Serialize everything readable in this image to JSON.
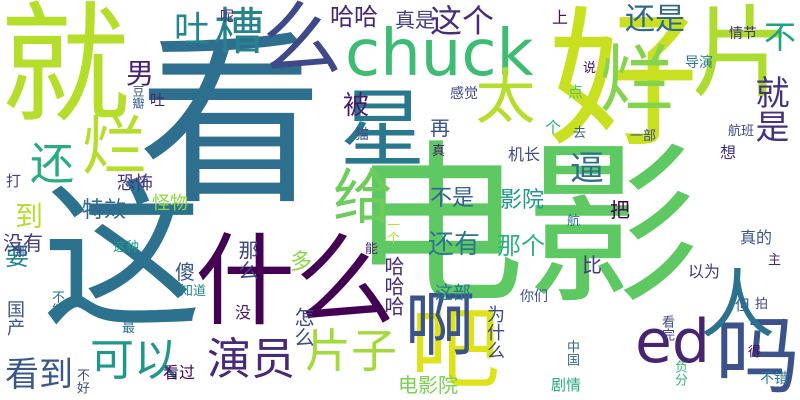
{
  "words": [
    {
      "text": "看",
      "color": "#2e6e8e",
      "vertical": false
    },
    {
      "text": "电影",
      "color": "#5ec962",
      "vertical": false
    },
    {
      "text": "这",
      "color": "#2c728e",
      "vertical": false
    },
    {
      "text": "就",
      "color": "#b5de2b",
      "vertical": false
    },
    {
      "text": "好",
      "color": "#c8e020",
      "vertical": true
    },
    {
      "text": "什么",
      "color": "#440154",
      "vertical": false
    },
    {
      "text": "chuck",
      "color": "#3dbc74",
      "vertical": false
    },
    {
      "text": "片",
      "color": "#addc30",
      "vertical": true
    },
    {
      "text": "吧",
      "color": "#dde318",
      "vertical": false
    },
    {
      "text": "啊",
      "color": "#3b528b",
      "vertical": false
    },
    {
      "text": "星",
      "color": "#2a788e",
      "vertical": false
    },
    {
      "text": "么",
      "color": "#3e4989",
      "vertical": false
    },
    {
      "text": "吗",
      "color": "#3b528b",
      "vertical": false
    },
    {
      "text": "ed",
      "color": "#482374",
      "vertical": false
    },
    {
      "text": "人",
      "color": "#2c728e",
      "vertical": false
    },
    {
      "text": "给",
      "color": "#6ccd5a",
      "vertical": false
    },
    {
      "text": "太",
      "color": "#b5de2b",
      "vertical": true
    },
    {
      "text": "烂",
      "color": "#84d44b",
      "vertical": true
    },
    {
      "text": "烂",
      "color": "#b5de2b",
      "vertical": true
    },
    {
      "text": "还",
      "color": "#27ad81",
      "vertical": false
    },
    {
      "text": "片子",
      "color": "#a2da37",
      "vertical": false
    },
    {
      "text": "演员",
      "color": "#482878",
      "vertical": false
    },
    {
      "text": "可以",
      "color": "#1f988b",
      "vertical": false
    },
    {
      "text": "看到",
      "color": "#38588c",
      "vertical": false
    },
    {
      "text": "槽",
      "color": "#26828e",
      "vertical": true
    },
    {
      "text": "吐",
      "color": "#25858e",
      "vertical": true
    },
    {
      "text": "就是",
      "color": "#46327e",
      "vertical": true
    },
    {
      "text": "不",
      "color": "#1fa088",
      "vertical": true
    },
    {
      "text": "这个",
      "color": "#472c7a",
      "vertical": false
    },
    {
      "text": "哈哈",
      "color": "#482475",
      "vertical": false
    },
    {
      "text": "真是",
      "color": "#433d84",
      "vertical": false
    },
    {
      "text": "还是",
      "color": "#31688e",
      "vertical": false
    },
    {
      "text": "男",
      "color": "#482173",
      "vertical": false
    },
    {
      "text": "被",
      "color": "#481b6d",
      "vertical": false
    },
    {
      "text": "逼",
      "color": "#2e6f8e",
      "vertical": false
    },
    {
      "text": "到",
      "color": "#b8de29",
      "vertical": false
    },
    {
      "text": "要",
      "color": "#24878e",
      "vertical": false
    },
    {
      "text": "没有",
      "color": "#443983",
      "vertical": false
    },
    {
      "text": "多",
      "color": "#8bd646",
      "vertical": false
    },
    {
      "text": "再",
      "color": "#3a548c",
      "vertical": false
    },
    {
      "text": "不是",
      "color": "#34618d",
      "vertical": false
    },
    {
      "text": "影院",
      "color": "#1f978b",
      "vertical": false
    },
    {
      "text": "还有",
      "color": "#2a768e",
      "vertical": false
    },
    {
      "text": "那个",
      "color": "#2db27d",
      "vertical": false
    },
    {
      "text": "把",
      "color": "#440154",
      "vertical": false
    },
    {
      "text": "比",
      "color": "#443a83",
      "vertical": false
    },
    {
      "text": "特效",
      "color": "#31688e",
      "vertical": false
    },
    {
      "text": "怪物",
      "color": "#90d743",
      "vertical": false
    },
    {
      "text": "恐怖",
      "color": "#46337f",
      "vertical": false
    },
    {
      "text": "傻",
      "color": "#39568c",
      "vertical": false
    },
    {
      "text": "知道",
      "color": "#25858e",
      "vertical": false
    },
    {
      "text": "那么",
      "color": "#414487",
      "vertical": true
    },
    {
      "text": "怎么",
      "color": "#3e4989",
      "vertical": true
    },
    {
      "text": "哈哈哈",
      "color": "#472d7b",
      "vertical": true
    },
    {
      "text": "这部",
      "color": "#2a788e",
      "vertical": false
    },
    {
      "text": "你们",
      "color": "#3b528b",
      "vertical": false
    },
    {
      "text": "电影院",
      "color": "#7ad151",
      "vertical": false
    },
    {
      "text": "为什么",
      "color": "#3e4989",
      "vertical": true
    },
    {
      "text": "剧情",
      "color": "#27ad81",
      "vertical": false
    },
    {
      "text": "看过",
      "color": "#450559",
      "vertical": false
    },
    {
      "text": "国产",
      "color": "#3b528b",
      "vertical": true
    },
    {
      "text": "不能",
      "color": "#2c728e",
      "vertical": true
    },
    {
      "text": "没",
      "color": "#481769",
      "vertical": false
    },
    {
      "text": "最",
      "color": "#2c728e",
      "vertical": false
    },
    {
      "text": "不好",
      "color": "#3e4a89",
      "vertical": true
    },
    {
      "text": "上",
      "color": "#471164",
      "vertical": false
    },
    {
      "text": "呢",
      "color": "#482979",
      "vertical": false
    },
    {
      "text": "情节",
      "color": "#46307e",
      "vertical": false
    },
    {
      "text": "导演",
      "color": "#2a788e",
      "vertical": false
    },
    {
      "text": "说",
      "color": "#471063",
      "vertical": false
    },
    {
      "text": "感觉",
      "color": "#3f4788",
      "vertical": false
    },
    {
      "text": "豆瓣",
      "color": "#38598c",
      "vertical": true
    },
    {
      "text": "吐",
      "color": "#482475",
      "vertical": false
    },
    {
      "text": "点",
      "color": "#52c569",
      "vertical": false
    },
    {
      "text": "去",
      "color": "#355f8d",
      "vertical": false
    },
    {
      "text": "个",
      "color": "#2db27d",
      "vertical": false
    },
    {
      "text": "一部",
      "color": "#3e4989",
      "vertical": false
    },
    {
      "text": "真",
      "color": "#481d6f",
      "vertical": false
    },
    {
      "text": "机长",
      "color": "#3f4889",
      "vertical": false
    },
    {
      "text": "猫",
      "color": "#3b528b",
      "vertical": false
    },
    {
      "text": "想",
      "color": "#46307e",
      "vertical": false
    },
    {
      "text": "航班",
      "color": "#3f4788",
      "vertical": false
    },
    {
      "text": "打",
      "color": "#414487",
      "vertical": false
    },
    {
      "text": "让",
      "color": "#3e4989",
      "vertical": false
    },
    {
      "text": "航",
      "color": "#2c728e",
      "vertical": false
    },
    {
      "text": "这种",
      "color": "#1f9e89",
      "vertical": false
    },
    {
      "text": "能",
      "color": "#482576",
      "vertical": false
    },
    {
      "text": "一个",
      "color": "#b8de29",
      "vertical": true
    },
    {
      "text": "真的",
      "color": "#3b528b",
      "vertical": false
    },
    {
      "text": "主",
      "color": "#482979",
      "vertical": false
    },
    {
      "text": "以为",
      "color": "#453882",
      "vertical": false
    },
    {
      "text": "但",
      "color": "#355f8d",
      "vertical": false
    },
    {
      "text": "拍",
      "color": "#3f4788",
      "vertical": false
    },
    {
      "text": "中国",
      "color": "#31688e",
      "vertical": true
    },
    {
      "text": "负分",
      "color": "#35b779",
      "vertical": true
    },
    {
      "text": "看完",
      "color": "#414487",
      "vertical": true
    },
    {
      "text": "得",
      "color": "#440154",
      "vertical": false
    },
    {
      "text": "不错",
      "color": "#2a788e",
      "vertical": false
    },
    {
      "text": "那",
      "color": "#3e4989",
      "vertical": false
    }
  ]
}
